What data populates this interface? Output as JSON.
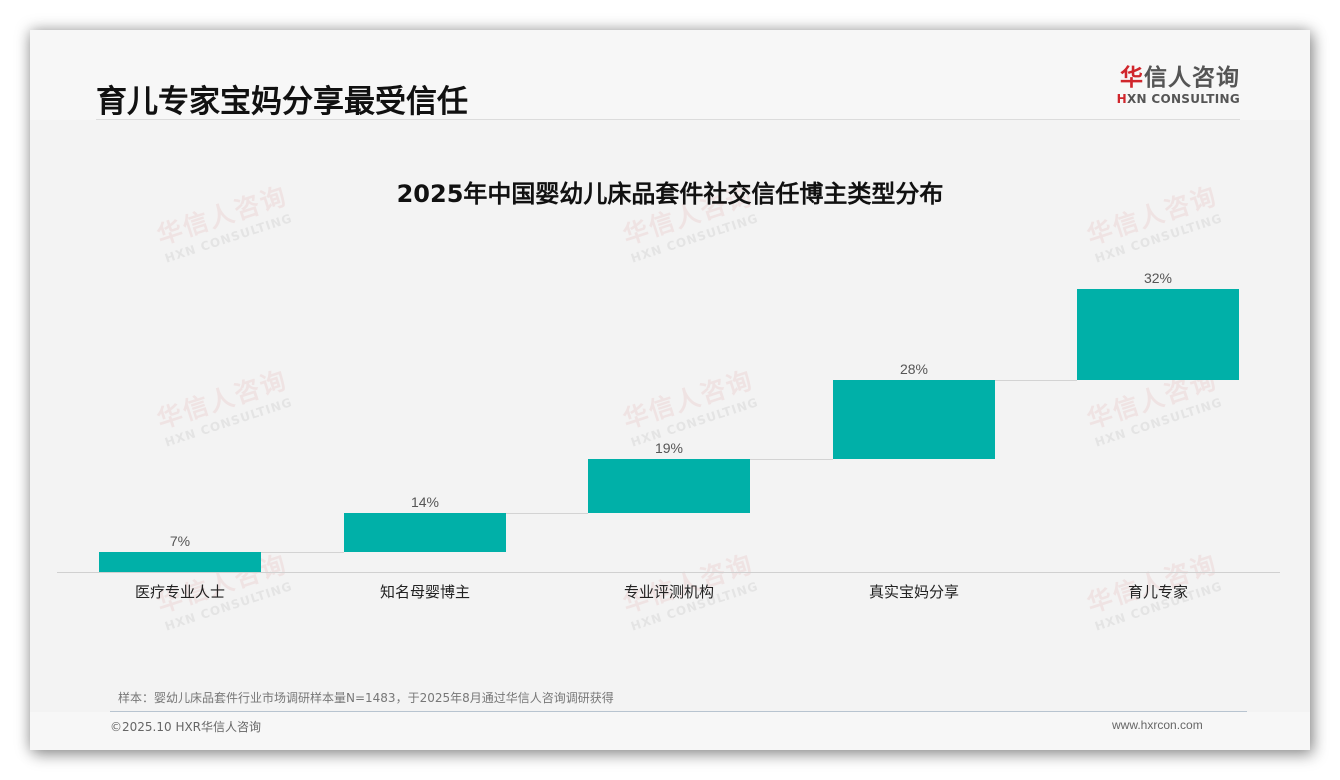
{
  "header": {
    "title": "育儿专家宝妈分享最受信任",
    "logo": {
      "cn_accent": "华",
      "cn_rest": "信人咨询",
      "en_accent": "H",
      "en_rest": "XN CONSULTING"
    }
  },
  "watermark": {
    "cn": "华信人咨询",
    "en": "HXN CONSULTING"
  },
  "colors": {
    "bar": "#00b0a8",
    "logo_accent": "#d0262c",
    "background": "#f3f3f3"
  },
  "chart_data": {
    "type": "bar",
    "subtype": "waterfall",
    "title": "2025年中国婴幼儿床品套件社交信任博主类型分布",
    "categories": [
      "医疗专业人士",
      "知名母婴博主",
      "专业评测机构",
      "真实宝妈分享",
      "育儿专家"
    ],
    "values": [
      7,
      14,
      19,
      28,
      32
    ],
    "value_labels": [
      "7%",
      "14%",
      "19%",
      "28%",
      "32%"
    ],
    "unit": "%",
    "xlabel": "",
    "ylabel": "",
    "ylim": [
      0,
      100
    ],
    "grid": false,
    "legend": null
  },
  "footer": {
    "note": "样本：婴幼儿床品套件行业市场调研样本量N=1483，于2025年8月通过华信人咨询调研获得",
    "copyright": "©2025.10 HXR华信人咨询",
    "website": "www.hxrcon.com"
  }
}
